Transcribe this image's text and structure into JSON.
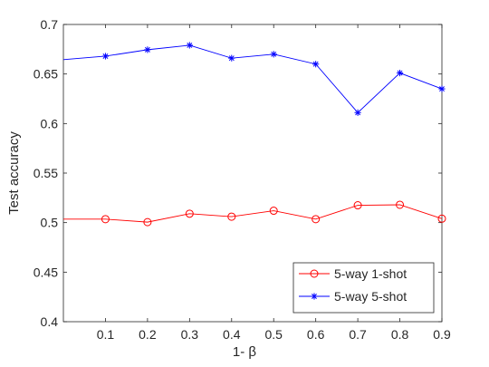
{
  "chart_data": {
    "type": "line",
    "title": "",
    "xlabel": "1- β",
    "ylabel": "Test accuracy",
    "xlim": [
      0,
      0.9
    ],
    "ylim": [
      0.4,
      0.7
    ],
    "xticks": [
      0.1,
      0.2,
      0.3,
      0.4,
      0.5,
      0.6,
      0.7,
      0.8,
      0.9
    ],
    "xtick_labels": [
      "0.1",
      "0.2",
      "0.3",
      "0.4",
      "0.5",
      "0.6",
      "0.7",
      "0.8",
      "0.9"
    ],
    "yticks": [
      0.4,
      0.45,
      0.5,
      0.55,
      0.6,
      0.65,
      0.7
    ],
    "ytick_labels": [
      "0.4",
      "0.45",
      "0.5",
      "0.55",
      "0.6",
      "0.65",
      "0.7"
    ],
    "grid": false,
    "legend_position": "bottom-right",
    "series": [
      {
        "name": "5-way 1-shot",
        "color": "#ff0000",
        "marker": "circle",
        "x": [
          0,
          0.1,
          0.2,
          0.3,
          0.4,
          0.5,
          0.6,
          0.7,
          0.8,
          0.9
        ],
        "y": [
          0.5035,
          0.5035,
          0.5005,
          0.509,
          0.506,
          0.512,
          0.5035,
          0.5175,
          0.518,
          0.504
        ],
        "marker_from_index": 1
      },
      {
        "name": "5-way 5-shot",
        "color": "#0000ff",
        "marker": "asterisk",
        "x": [
          0,
          0.1,
          0.2,
          0.3,
          0.4,
          0.5,
          0.6,
          0.7,
          0.8,
          0.9
        ],
        "y": [
          0.6645,
          0.668,
          0.6745,
          0.679,
          0.666,
          0.67,
          0.66,
          0.611,
          0.651,
          0.635
        ],
        "marker_from_index": 1
      }
    ]
  }
}
